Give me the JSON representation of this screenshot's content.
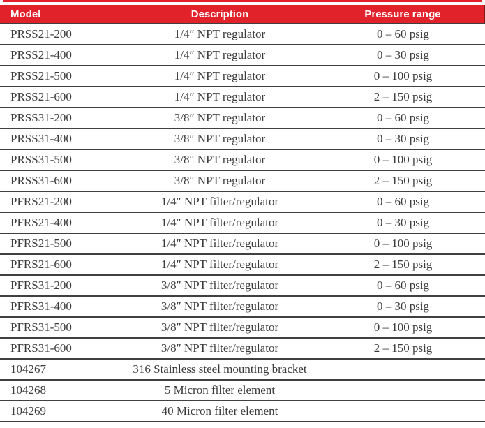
{
  "colors": {
    "header_background": "#e2222b",
    "header_text": "#ffffff",
    "row_rule": "#404040",
    "body_text": "#3b3b3c",
    "page_background": "#ffffff"
  },
  "table": {
    "columns": [
      {
        "key": "model",
        "label": "Model",
        "align": "left"
      },
      {
        "key": "description",
        "label": "Description",
        "align": "center"
      },
      {
        "key": "pressure",
        "label": "Pressure range",
        "align": "center"
      }
    ],
    "rows": [
      {
        "model": "PRSS21-200",
        "description": "1/4″ NPT regulator",
        "pressure": "0 – 60 psig"
      },
      {
        "model": "PRSS21-400",
        "description": "1/4″ NPT regulator",
        "pressure": "0 – 30 psig"
      },
      {
        "model": "PRSS21-500",
        "description": "1/4″ NPT regulator",
        "pressure": "0 – 100 psig"
      },
      {
        "model": "PRSS21-600",
        "description": "1/4″ NPT regulator",
        "pressure": "2 – 150 psig"
      },
      {
        "model": "PRSS31-200",
        "description": "3/8″ NPT regulator",
        "pressure": "0 – 60 psig"
      },
      {
        "model": "PRSS31-400",
        "description": "3/8″ NPT regulator",
        "pressure": "0 – 30 psig"
      },
      {
        "model": "PRSS31-500",
        "description": "3/8″ NPT regulator",
        "pressure": "0 – 100 psig"
      },
      {
        "model": "PRSS31-600",
        "description": "3/8″ NPT regulator",
        "pressure": "2 – 150 psig"
      },
      {
        "model": "PFRS21-200",
        "description": "1/4″ NPT filter/regulator",
        "pressure": "0 – 60 psig"
      },
      {
        "model": "PFRS21-400",
        "description": "1/4″ NPT filter/regulator",
        "pressure": "0 – 30 psig"
      },
      {
        "model": "PFRS21-500",
        "description": "1/4″ NPT filter/regulator",
        "pressure": "0 – 100 psig"
      },
      {
        "model": "PFRS21-600",
        "description": "1/4″ NPT filter/regulator",
        "pressure": "2 – 150 psig"
      },
      {
        "model": "PFRS31-200",
        "description": "3/8″ NPT filter/regulator",
        "pressure": "0 – 60 psig"
      },
      {
        "model": "PFRS31-400",
        "description": "3/8″ NPT filter/regulator",
        "pressure": "0 – 30 psig"
      },
      {
        "model": "PFRS31-500",
        "description": "3/8″ NPT filter/regulator",
        "pressure": "0 – 100 psig"
      },
      {
        "model": "PFRS31-600",
        "description": "3/8″ NPT filter/regulator",
        "pressure": "2 – 150 psig"
      },
      {
        "model": "104267",
        "description": "316 Stainless steel mounting bracket",
        "pressure": ""
      },
      {
        "model": "104268",
        "description": "5 Micron filter element",
        "pressure": ""
      },
      {
        "model": "104269",
        "description": "40 Micron filter element",
        "pressure": ""
      }
    ]
  }
}
